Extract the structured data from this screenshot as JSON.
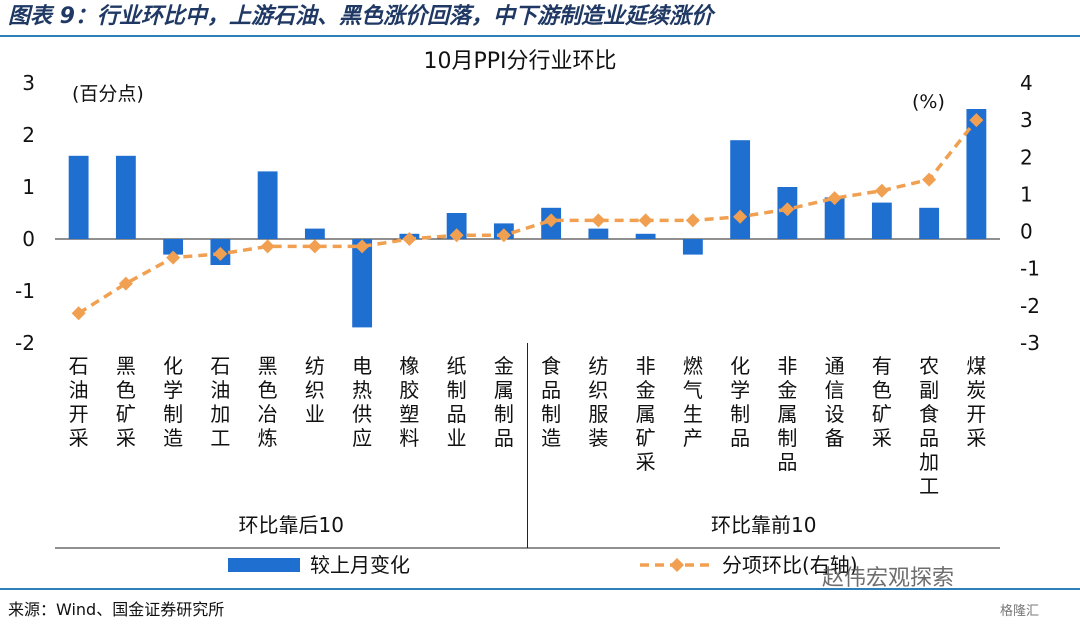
{
  "figure_title": "图表 9：行业环比中，上游石油、黑色涨价回落，中下游制造业延续涨价",
  "source": "来源：Wind、国金证券研究所",
  "watermark": "赵伟宏观探索",
  "watermark2": "格隆汇",
  "colors": {
    "bar": "#1f6fd0",
    "line": "#f0a050",
    "rule": "#2d7fb8",
    "title": "#1f3864"
  },
  "chart_data": {
    "type": "bar",
    "title": "10月PPI分行业环比",
    "left_axis_label": "(百分点)",
    "right_axis_label": "(%)",
    "left_ylim": [
      -2,
      3
    ],
    "left_ticks": [
      "3",
      "2",
      "1",
      "0",
      "-1",
      "-2"
    ],
    "right_ylim": [
      -3,
      4
    ],
    "right_ticks": [
      "4",
      "3",
      "2",
      "1",
      "0",
      "-1",
      "-2",
      "-3"
    ],
    "categories": [
      "石油开采",
      "黑色矿采",
      "化学制造",
      "石油加工",
      "黑色冶炼",
      "纺织业",
      "电热供应",
      "橡胶塑料",
      "纸制品业",
      "金属制品",
      "食品制造",
      "纺织服装",
      "非金属矿采",
      "燃气生产",
      "化学制品",
      "非金属制品",
      "通信设备",
      "有色矿采",
      "农副食品加工",
      "煤炭开采"
    ],
    "groups": [
      {
        "label": "环比靠后10",
        "count": 10
      },
      {
        "label": "环比靠前10",
        "count": 10
      }
    ],
    "series": [
      {
        "name": "较上月变化",
        "type": "bar",
        "axis": "left",
        "values": [
          1.6,
          1.6,
          -0.3,
          -0.5,
          1.3,
          0.2,
          -1.7,
          0.1,
          0.5,
          0.3,
          0.6,
          0.2,
          0.1,
          -0.3,
          1.9,
          1.0,
          0.8,
          0.7,
          0.6,
          2.5
        ]
      },
      {
        "name": "分项环比(右轴)",
        "type": "line",
        "axis": "right",
        "values": [
          -2.2,
          -1.4,
          -0.7,
          -0.6,
          -0.4,
          -0.4,
          -0.4,
          -0.2,
          -0.1,
          -0.1,
          0.3,
          0.3,
          0.3,
          0.3,
          0.4,
          0.6,
          0.9,
          1.1,
          1.4,
          3.0
        ]
      }
    ]
  }
}
